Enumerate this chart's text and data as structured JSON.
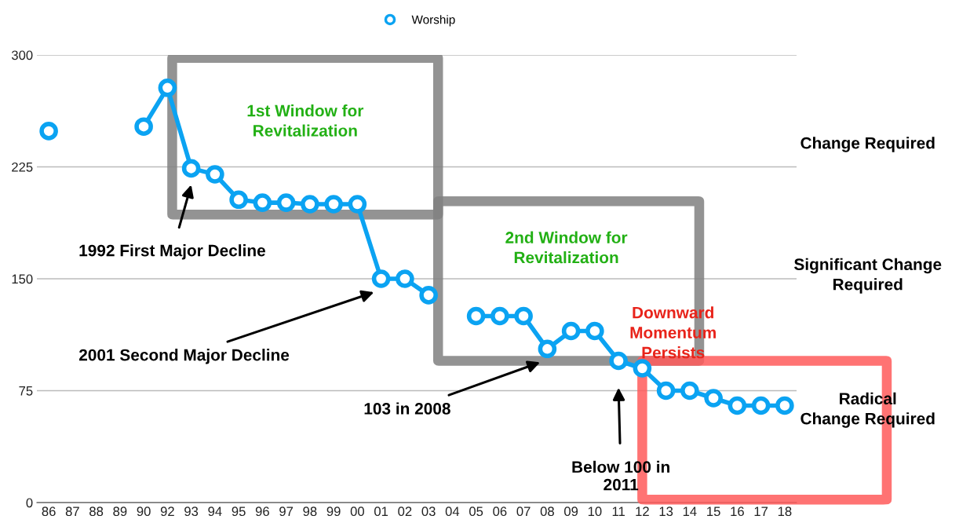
{
  "chart_data": {
    "type": "line",
    "categories": [
      "86",
      "87",
      "88",
      "89",
      "90",
      "92",
      "93",
      "94",
      "95",
      "96",
      "97",
      "98",
      "99",
      "00",
      "01",
      "02",
      "03",
      "04",
      "05",
      "06",
      "07",
      "08",
      "09",
      "10",
      "11",
      "12",
      "13",
      "14",
      "15",
      "16",
      "17",
      "18"
    ],
    "series": [
      {
        "name": "Worship",
        "color": "#0ba3f2",
        "values": [
          249,
          null,
          null,
          null,
          252,
          278,
          224,
          220,
          203,
          201,
          201,
          200,
          200,
          200,
          150,
          150,
          139,
          null,
          125,
          125,
          125,
          103,
          115,
          115,
          95,
          90,
          75,
          75,
          70,
          65,
          65,
          65
        ]
      }
    ],
    "ylim": [
      0,
      300
    ],
    "yticks": [
      0,
      75,
      150,
      225,
      300
    ],
    "grid": "y",
    "legend": "top",
    "marker": "circle",
    "line_style": "solid",
    "annotations": [
      "1992 First Major Decline",
      "2001 Second Major Decline",
      "103 in 2008",
      "Below 100 in\n2011",
      "1st Window for\nRevitalization",
      "2nd Window for\nRevitalization",
      "Downward\nMomentum\nPersists",
      "Change Required",
      "Significant Change\nRequired",
      "Radical\nChange Required"
    ]
  }
}
